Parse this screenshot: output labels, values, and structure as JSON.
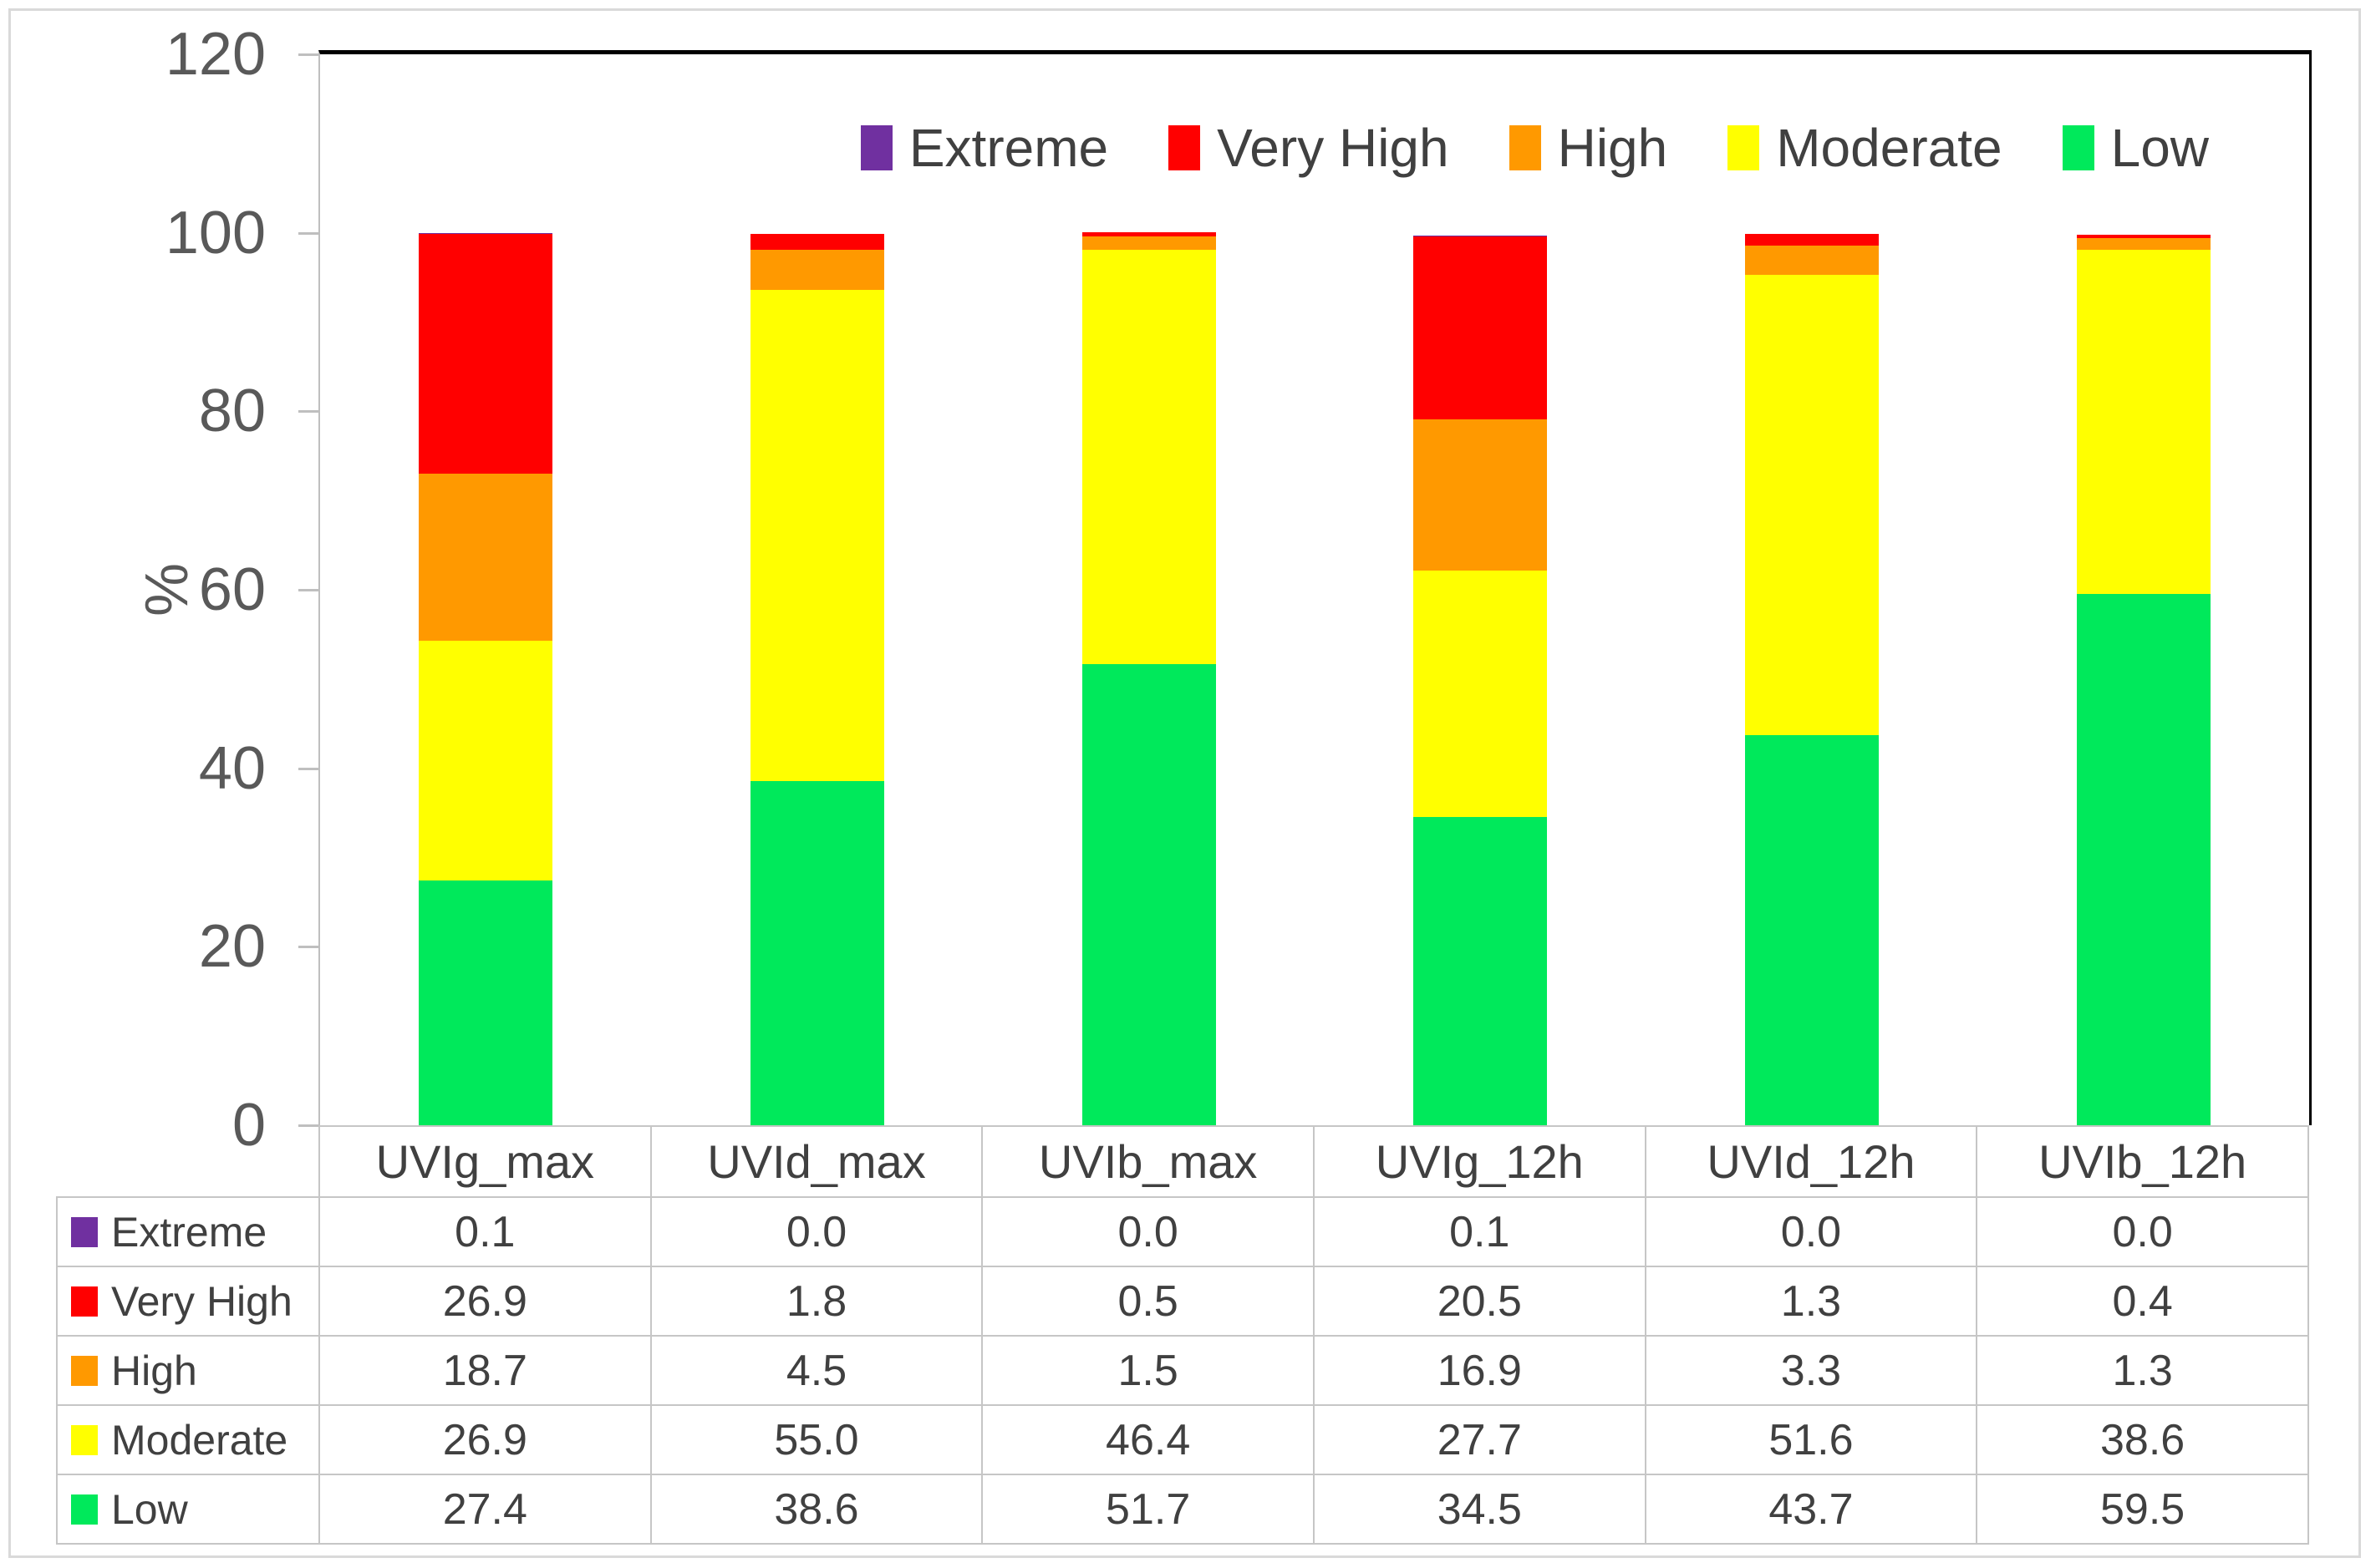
{
  "chart_data": {
    "type": "bar",
    "stacked": true,
    "title": "",
    "xlabel": "",
    "ylabel": "%",
    "ylim": [
      0,
      120
    ],
    "ytick_step": 20,
    "grid": false,
    "legend_position": "top-inside",
    "data_table_shown": true,
    "value_decimals": 1,
    "categories": [
      "UVIg_max",
      "UVId_max",
      "UVIb_max",
      "UVIg_12h",
      "UVId_12h",
      "UVIb_12h"
    ],
    "series": [
      {
        "name": "Extreme",
        "color": "#7030A0",
        "values": [
          0.1,
          0.0,
          0.0,
          0.1,
          0.0,
          0.0
        ]
      },
      {
        "name": "Very High",
        "color": "#FF0000",
        "values": [
          26.9,
          1.8,
          0.5,
          20.5,
          1.3,
          0.4
        ]
      },
      {
        "name": "High",
        "color": "#FF9900",
        "values": [
          18.7,
          4.5,
          1.5,
          16.9,
          3.3,
          1.3
        ]
      },
      {
        "name": "Moderate",
        "color": "#FFFF00",
        "values": [
          26.9,
          55.0,
          46.4,
          27.7,
          51.6,
          38.6
        ]
      },
      {
        "name": "Low",
        "color": "#00E95B",
        "values": [
          27.4,
          38.6,
          51.7,
          34.5,
          43.7,
          59.5
        ]
      }
    ]
  }
}
